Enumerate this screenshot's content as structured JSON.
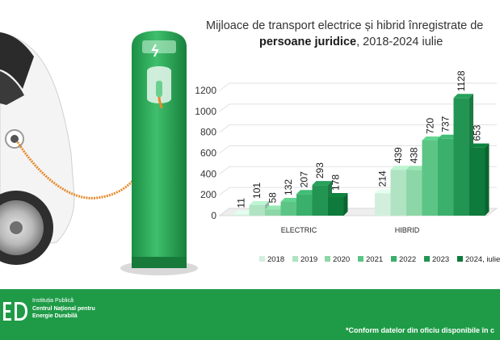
{
  "title": {
    "line1": "Mijloace de transport electrice și hibrid înregistrate de",
    "line2_bold": "persoane juridice",
    "line2_rest": ", 2018-2024 iulie"
  },
  "chart_data": {
    "type": "bar",
    "categories": [
      "ELECTRIC",
      "HIBRID"
    ],
    "series": [
      {
        "name": "2018",
        "values": [
          11,
          214
        ]
      },
      {
        "name": "2019",
        "values": [
          101,
          439
        ]
      },
      {
        "name": "2020",
        "values": [
          58,
          438
        ]
      },
      {
        "name": "2021",
        "values": [
          132,
          720
        ]
      },
      {
        "name": "2022",
        "values": [
          207,
          737
        ]
      },
      {
        "name": "2023",
        "values": [
          293,
          1128
        ]
      },
      {
        "name": "2024, iulie",
        "values": [
          178,
          653
        ]
      }
    ],
    "yticks": [
      0,
      200,
      400,
      600,
      800,
      1000,
      1200
    ],
    "ylim": [
      0,
      1200
    ],
    "legend_position": "bottom",
    "series_colors": [
      "#d2efdd",
      "#b0e3c2",
      "#8dd6a7",
      "#5cc586",
      "#3ab06c",
      "#239553",
      "#0e7a3b"
    ]
  },
  "footer": {
    "org_line1": "Instituția Publică",
    "org_line2": "Centrul Național pentru",
    "org_line3": "Energie Durabilă",
    "note": "*Conform datelor din oficiu disponibile în c"
  }
}
